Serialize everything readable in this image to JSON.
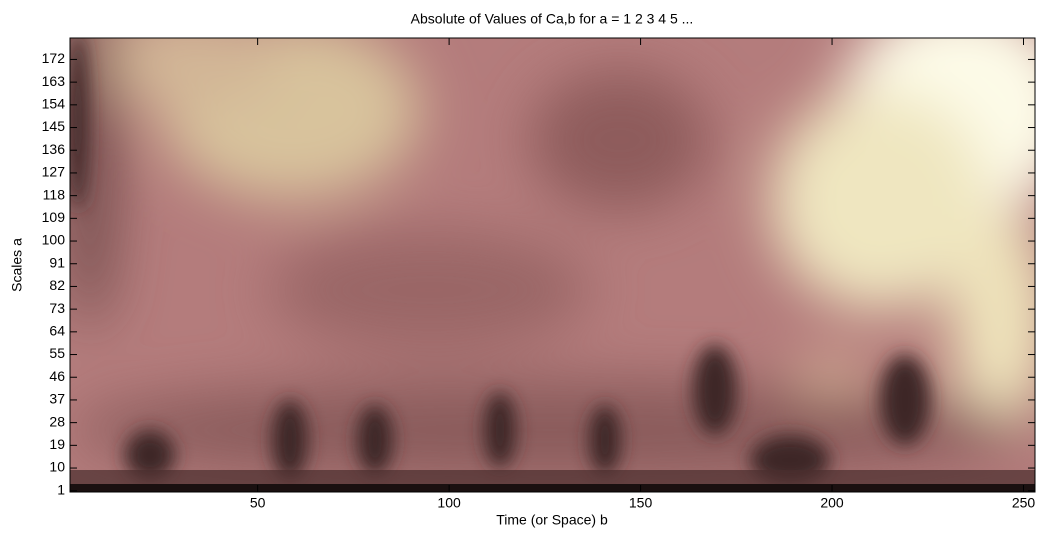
{
  "chart_data": {
    "type": "heatmap",
    "title": "Absolute of Values of Ca,b for a =  1 2 3 4 5 ...",
    "x_label": "Time (or Space) b",
    "y_label": "Scales a",
    "xlim": [
      1,
      253
    ],
    "xticks": [
      50,
      100,
      150,
      200,
      250
    ],
    "ylim": [
      0.5,
      180.5
    ],
    "yticks": [
      1,
      10,
      19,
      28,
      37,
      46,
      55,
      64,
      73,
      82,
      91,
      100,
      109,
      118,
      127,
      136,
      145,
      154,
      163,
      172
    ]
  }
}
